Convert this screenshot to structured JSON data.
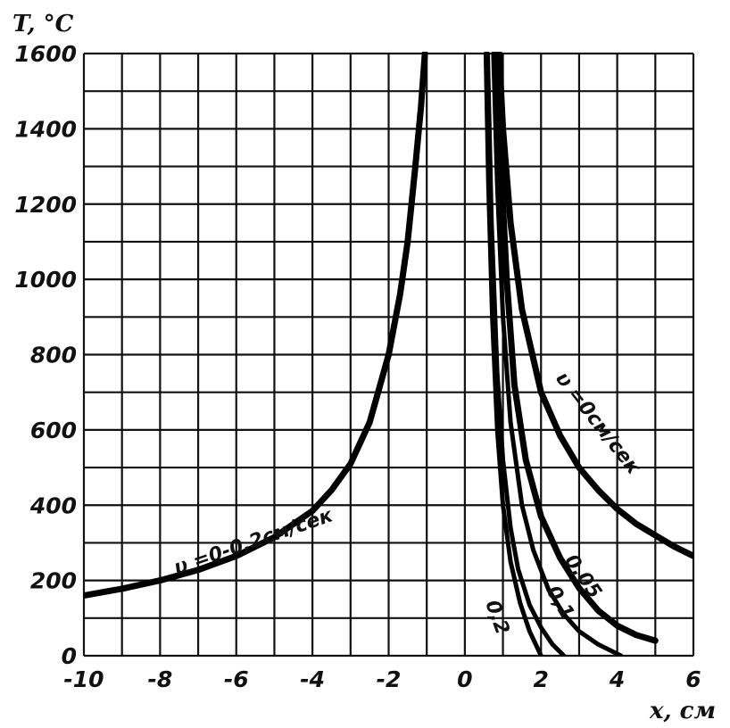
{
  "chart_data": {
    "type": "line",
    "title": "",
    "xlabel": "x, см",
    "ylabel": "T, °C",
    "xlim": [
      -10,
      6
    ],
    "ylim": [
      0,
      1600
    ],
    "grid": true,
    "x_ticks": [
      "-10",
      "-8",
      "-6",
      "-4",
      "-2",
      "0",
      "2",
      "4",
      "6"
    ],
    "y_ticks": [
      "0",
      "200",
      "400",
      "600",
      "800",
      "1000",
      "1200",
      "1400",
      "1600"
    ],
    "series": [
      {
        "label": "υ =0-0,2см/сек",
        "x": [
          -10,
          -9,
          -8,
          -7,
          -6,
          -5,
          -4,
          -3.5,
          -3,
          -2.5,
          -2,
          -1.7,
          -1.5,
          -1.3,
          -1.15,
          -1.05
        ],
        "y": [
          160,
          178,
          200,
          228,
          265,
          315,
          385,
          440,
          510,
          620,
          800,
          960,
          1100,
          1300,
          1460,
          1600
        ]
      },
      {
        "label": "υ =0см/сек",
        "x": [
          0.9,
          1.0,
          1.2,
          1.5,
          2.0,
          2.5,
          3.0,
          3.5,
          4.0,
          4.5,
          5.0,
          5.5,
          6.0
        ],
        "y": [
          1600,
          1400,
          1150,
          920,
          700,
          585,
          500,
          440,
          390,
          350,
          320,
          290,
          265
        ]
      },
      {
        "label": "0,05",
        "x": [
          0.85,
          0.95,
          1.1,
          1.3,
          1.6,
          2.0,
          2.5,
          3.0,
          3.5,
          4.0,
          4.5,
          5.0
        ],
        "y": [
          1600,
          1300,
          1000,
          720,
          520,
          370,
          260,
          180,
          120,
          80,
          55,
          40
        ]
      },
      {
        "label": "0,1",
        "x": [
          0.75,
          0.85,
          1.0,
          1.2,
          1.5,
          1.8,
          2.2,
          2.6,
          3.0,
          3.5,
          4.1
        ],
        "y": [
          1600,
          1250,
          900,
          620,
          400,
          280,
          175,
          110,
          65,
          30,
          0
        ]
      },
      {
        "label": "0,2",
        "x": [
          0.6,
          0.7,
          0.85,
          1.0,
          1.2,
          1.4,
          1.7,
          2.0,
          2.3,
          2.6
        ],
        "y": [
          1600,
          1150,
          750,
          520,
          340,
          230,
          135,
          75,
          30,
          0
        ]
      },
      {
        "label": "",
        "x": [
          0.55,
          0.62,
          0.72,
          0.85,
          1.0,
          1.2,
          1.45,
          1.7,
          2.0
        ],
        "y": [
          1600,
          1250,
          900,
          600,
          400,
          250,
          140,
          65,
          0
        ]
      }
    ],
    "annotations": [
      "υ =0-0,2см/сек",
      "υ =0см/сек",
      "0,05",
      "0,1",
      "0,2"
    ]
  }
}
